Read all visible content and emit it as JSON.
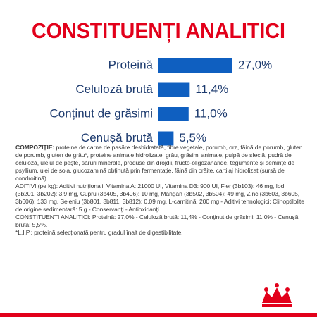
{
  "chart_data": {
    "type": "bar",
    "orientation": "horizontal",
    "title": "CONSTITUENȚI ANALITICI",
    "categories": [
      "Proteină",
      "Celuloză brută",
      "Conținut de grăsimi",
      "Cenușă brută"
    ],
    "values": [
      27.0,
      11.4,
      11.0,
      5.5
    ],
    "value_labels": [
      "27,0%",
      "11,4%",
      "11,0%",
      "5,5%"
    ],
    "color": "#0f5fc0"
  },
  "composition": {
    "label": "COMPOZIȚIE:",
    "text": "proteine de carne de pasăre deshidratată, fibre vegetale, porumb, orz, făină de porumb, gluten de porumb, gluten de grâu*, proteine animale hidrolizate, grâu, grăsimi animale, pulpă de sfeclă, pudră de celuloză, uleiul de pește, săruri minerale, produse din drojdii, fructo-oligozaharide, tegumente și semințe de psyllium, ulei de soia, glucozamină obținută prin fermentație, făină din crăițe, cartilaj hidrolizat (sursă de condroitină).",
    "additives": "ADITIVI (pe kg): Aditivi nutriționali: Vitamina A: 21000 UI, Vitamina D3: 900 UI, Fier (3b103): 46 mg, Iod (3b201, 3b202): 3,9 mg, Cupru (3b405, 3b406): 10 mg, Mangan (3b502, 3b504): 49 mg, Zinc (3b603, 3b605, 3b606): 133 mg, Seleniu (3b801, 3b811, 3b812): 0,09 mg, L-carnitină: 200 mg - Aditivi tehnologici: Clinoptilolite de origine sedimentară: 5 g - Conservanți - Antioxidanți.",
    "analytic": "CONSTITUENȚI ANALITICI: Proteină: 27,0% - Celuloză brută: 11,4% - Conținut de grăsimi: 11,0% - Cenușă brută: 5,5%.",
    "footnote": "*L.I.P.: proteină selecționată pentru gradul înalt de digestibilitate."
  }
}
